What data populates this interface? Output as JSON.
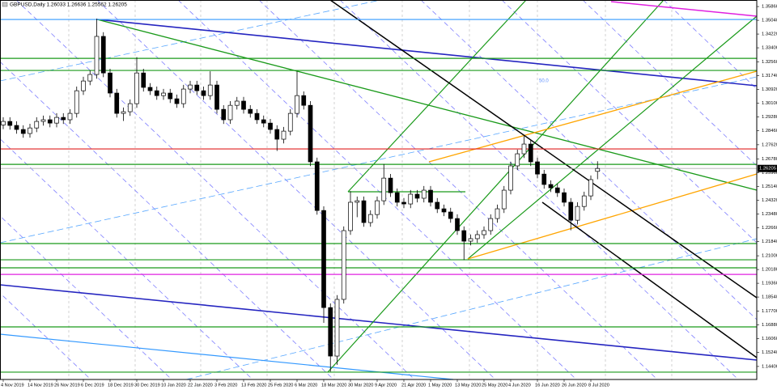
{
  "chart_data": {
    "type": "candlestick",
    "title": "GBPUSD,Daily  1.26033 1.26636 1.25562 1.26205",
    "categories": [
      "4 Nov 2019",
      null,
      null,
      null,
      "14 Nov 2019",
      null,
      null,
      null,
      "26 Nov 2019",
      null,
      null,
      null,
      "6 Dec 2019",
      null,
      null,
      null,
      "18 Dec 2019",
      null,
      null,
      null,
      "30 Dec 2019",
      null,
      null,
      null,
      "10 Jan 2020",
      null,
      null,
      null,
      "22 Jan 2020",
      null,
      null,
      null,
      "3 Feb 2020",
      null,
      null,
      null,
      "13 Feb 2020",
      null,
      null,
      null,
      "25 Feb 2020",
      null,
      null,
      null,
      "6 Mar 2020",
      null,
      null,
      null,
      "18 Mar 2020",
      null,
      null,
      null,
      "30 Mar 2020",
      null,
      null,
      null,
      "9 Apr 2020",
      null,
      null,
      null,
      "21 Apr 2020",
      null,
      null,
      null,
      "1 May 2020",
      null,
      null,
      null,
      "13 May 2020",
      null,
      null,
      null,
      "25 May 2020",
      null,
      null,
      null,
      "4 Jun 2020",
      null,
      null,
      null,
      "16 Jun 2020",
      null,
      null,
      null,
      "26 Jun 2020",
      null,
      null,
      null,
      "8 Jul 2020",
      null
    ],
    "open": [
      1.288,
      1.2901,
      1.2877,
      1.2853,
      1.2829,
      1.2862,
      1.2901,
      1.2911,
      1.2891,
      1.2925,
      1.2911,
      1.2949,
      1.3084,
      1.3142,
      1.3181,
      1.3408,
      1.319,
      1.307,
      1.2949,
      1.2959,
      1.3007,
      1.319,
      1.3104,
      1.3084,
      1.3055,
      1.307,
      1.3036,
      1.3007,
      1.3094,
      1.3118,
      1.3084,
      1.3055,
      1.3118,
      1.2973,
      1.2911,
      1.2997,
      1.3022,
      1.2973,
      1.2949,
      1.2911,
      1.2891,
      1.2853,
      1.2795,
      1.2843,
      1.2949,
      1.3055,
      1.2997,
      1.266,
      1.237,
      1.1791,
      1.1502,
      1.184,
      1.225,
      1.2419,
      1.2428,
      1.2298,
      1.2346,
      1.2428,
      1.2563,
      1.2476,
      1.2419,
      1.2409,
      1.2467,
      1.2443,
      1.2491,
      1.2419,
      1.238,
      1.2361,
      1.2322,
      1.225,
      1.2187,
      1.2202,
      1.2226,
      1.225,
      1.2322,
      1.238,
      1.2491,
      1.2636,
      1.2708,
      1.2766,
      1.266,
      1.2587,
      1.2525,
      1.2505,
      1.2476,
      1.2419,
      1.2312,
      1.2394,
      1.2457,
      1.26033
    ],
    "high": [
      1.2926,
      1.2926,
      1.2902,
      1.2878,
      1.2887,
      1.2926,
      1.2936,
      1.2936,
      1.295,
      1.295,
      1.2974,
      1.3109,
      1.3167,
      1.3206,
      1.3514,
      1.3433,
      1.3215,
      1.3095,
      1.2984,
      1.3032,
      1.3284,
      1.3215,
      1.3129,
      1.3109,
      1.3095,
      1.3095,
      1.3061,
      1.3119,
      1.3143,
      1.3143,
      1.3109,
      1.32,
      1.3143,
      1.2998,
      1.3022,
      1.3047,
      1.3047,
      1.2998,
      1.2974,
      1.2936,
      1.2916,
      1.2878,
      1.2868,
      1.2974,
      1.32,
      1.308,
      1.3022,
      1.2685,
      1.2395,
      1.1816,
      1.1865,
      1.2275,
      1.2485,
      1.2453,
      1.2453,
      1.2371,
      1.2453,
      1.2647,
      1.2588,
      1.2501,
      1.2444,
      1.2492,
      1.2492,
      1.2516,
      1.2516,
      1.2444,
      1.2405,
      1.2386,
      1.2347,
      1.2275,
      1.2227,
      1.2251,
      1.2275,
      1.2347,
      1.2405,
      1.2516,
      1.2661,
      1.2733,
      1.2813,
      1.2791,
      1.2685,
      1.2612,
      1.255,
      1.253,
      1.2501,
      1.2444,
      1.2419,
      1.2482,
      1.2579,
      1.26636
    ],
    "low": [
      1.2855,
      1.2852,
      1.2828,
      1.2804,
      1.2804,
      1.2837,
      1.2876,
      1.2866,
      1.2866,
      1.2886,
      1.2886,
      1.2924,
      1.3059,
      1.3117,
      1.3156,
      1.3165,
      1.3045,
      1.2924,
      1.2904,
      1.2934,
      1.2982,
      1.3079,
      1.3059,
      1.303,
      1.303,
      1.3011,
      1.2982,
      1.2982,
      1.3069,
      1.3059,
      1.303,
      1.303,
      1.2948,
      1.2886,
      1.2886,
      1.2972,
      1.2948,
      1.2924,
      1.2886,
      1.2866,
      1.2828,
      1.2725,
      1.277,
      1.2818,
      1.2924,
      1.2972,
      1.2635,
      1.2345,
      1.17,
      1.1409,
      1.145,
      1.1815,
      1.2225,
      1.233,
      1.2273,
      1.2273,
      1.2321,
      1.2403,
      1.2451,
      1.2394,
      1.2384,
      1.2384,
      1.2418,
      1.2418,
      1.2394,
      1.2355,
      1.2336,
      1.2297,
      1.2225,
      1.2075,
      1.2162,
      1.2177,
      1.2201,
      1.2225,
      1.2297,
      1.2355,
      1.2466,
      1.2611,
      1.2683,
      1.2635,
      1.2562,
      1.25,
      1.248,
      1.2451,
      1.2394,
      1.2252,
      1.2287,
      1.2369,
      1.2432,
      1.25562
    ],
    "close": [
      1.2901,
      1.2877,
      1.2853,
      1.2829,
      1.2862,
      1.2901,
      1.2911,
      1.2891,
      1.2925,
      1.2911,
      1.2949,
      1.3084,
      1.3142,
      1.3181,
      1.3408,
      1.319,
      1.307,
      1.2949,
      1.2959,
      1.3007,
      1.319,
      1.3104,
      1.3084,
      1.3055,
      1.307,
      1.3036,
      1.3007,
      1.3094,
      1.3118,
      1.3084,
      1.3055,
      1.3118,
      1.2973,
      1.2911,
      1.2997,
      1.3022,
      1.2973,
      1.2949,
      1.2911,
      1.2891,
      1.2853,
      1.2795,
      1.2843,
      1.2949,
      1.3055,
      1.2997,
      1.266,
      1.237,
      1.1791,
      1.1502,
      1.184,
      1.225,
      1.2419,
      1.2428,
      1.2298,
      1.2346,
      1.2428,
      1.2563,
      1.2476,
      1.2419,
      1.2409,
      1.2467,
      1.2443,
      1.2491,
      1.2419,
      1.238,
      1.2361,
      1.2322,
      1.225,
      1.2187,
      1.2202,
      1.2226,
      1.225,
      1.2322,
      1.238,
      1.2491,
      1.2636,
      1.2708,
      1.2766,
      1.266,
      1.2587,
      1.2525,
      1.2505,
      1.2476,
      1.2419,
      1.2312,
      1.2394,
      1.2457,
      1.2554,
      1.26205
    ],
    "up_color": "#ffffff",
    "down_color": "#000000",
    "ylim": [
      1.1372,
      1.3625
    ],
    "yticks": [
      {
        "value": 1.3586,
        "label": "1.35860"
      },
      {
        "value": 1.3504,
        "label": "1.35040"
      },
      {
        "value": 1.3422,
        "label": "1.34220"
      },
      {
        "value": 1.334,
        "label": "1.33400"
      },
      {
        "value": 1.3256,
        "label": "1.32560"
      },
      {
        "value": 1.3174,
        "label": "1.31740"
      },
      {
        "value": 1.3092,
        "label": "1.30920"
      },
      {
        "value": 1.301,
        "label": "1.30100"
      },
      {
        "value": 1.2928,
        "label": "1.29280"
      },
      {
        "value": 1.2846,
        "label": "1.28460"
      },
      {
        "value": 1.2762,
        "label": "1.27620"
      },
      {
        "value": 1.2678,
        "label": "1.26780"
      },
      {
        "value": 1.2596,
        "label": "1.25960"
      },
      {
        "value": 1.2514,
        "label": "1.25140"
      },
      {
        "value": 1.2432,
        "label": "1.24320"
      },
      {
        "value": 1.2348,
        "label": "1.23480"
      },
      {
        "value": 1.2266,
        "label": "1.22660"
      },
      {
        "value": 1.2184,
        "label": "1.21840"
      },
      {
        "value": 1.21,
        "label": "1.21000"
      },
      {
        "value": 1.2018,
        "label": "1.20180"
      },
      {
        "value": 1.1936,
        "label": "1.19360"
      },
      {
        "value": 1.1854,
        "label": "1.18540"
      },
      {
        "value": 1.177,
        "label": "1.17700"
      },
      {
        "value": 1.1688,
        "label": "1.16880"
      },
      {
        "value": 1.1606,
        "label": "1.16060"
      },
      {
        "value": 1.1524,
        "label": "1.15240"
      },
      {
        "value": 1.144,
        "label": "1.14400"
      }
    ],
    "last_price": {
      "value": 1.26205,
      "label": "1.26205"
    },
    "levels": [
      {
        "value": 1.3509,
        "color": "#3399ff"
      },
      {
        "value": 1.3277,
        "color": "#1a9a1a"
      },
      {
        "value": 1.3205,
        "color": "#1a9a1a"
      },
      {
        "value": 1.2737,
        "color": "#e02020"
      },
      {
        "value": 1.2645,
        "color": "#1a9a1a"
      },
      {
        "value": 1.2173,
        "color": "#1a9a1a"
      },
      {
        "value": 1.2076,
        "color": "#1a9a1a"
      },
      {
        "value": 1.2028,
        "color": "#1a9a1a"
      },
      {
        "value": 1.1989,
        "color": "#e020e0"
      },
      {
        "value": 1.1676,
        "color": "#1a9a1a"
      },
      {
        "value": 1.1406,
        "color": "#1a9a1a"
      }
    ],
    "annotation": "50.0"
  }
}
